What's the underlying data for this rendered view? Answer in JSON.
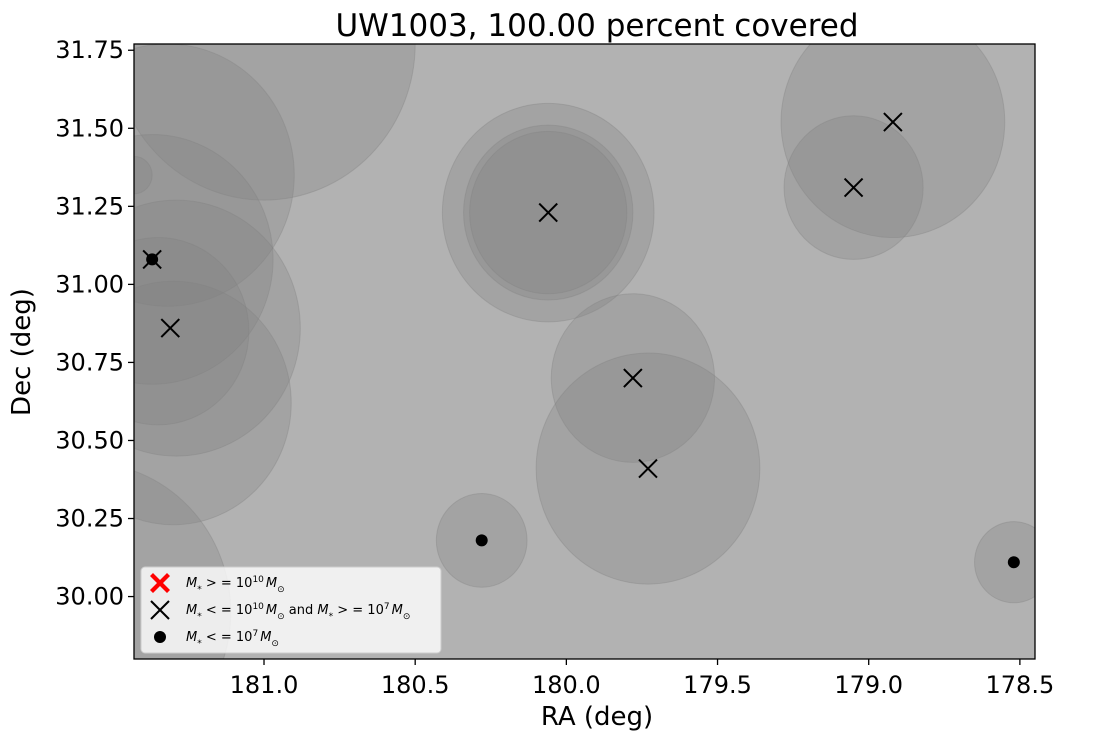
{
  "chart_data": {
    "type": "scatter",
    "title": "UW1003, 100.00 percent covered",
    "xlabel": "RA (deg)",
    "ylabel": "Dec (deg)",
    "xlim": [
      181.43,
      178.45
    ],
    "ylim": [
      29.8,
      31.77
    ],
    "x_inverted": true,
    "xticks": [
      181.0,
      180.5,
      180.0,
      179.5,
      179.0,
      178.5
    ],
    "xtick_labels": [
      "181.0",
      "180.5",
      "180.0",
      "179.5",
      "179.0",
      "178.5"
    ],
    "yticks": [
      30.0,
      30.25,
      30.5,
      30.75,
      31.0,
      31.25,
      31.5,
      31.75
    ],
    "ytick_labels": [
      "30.00",
      "30.25",
      "30.50",
      "30.75",
      "31.00",
      "31.25",
      "31.50",
      "31.75"
    ],
    "background_color": "#b2b2b2",
    "coverage_circle_color": "#808080",
    "coverage_circles": [
      {
        "ra": 181.0,
        "dec": 31.77,
        "radius": 0.5
      },
      {
        "ra": 181.32,
        "dec": 31.35,
        "radius": 0.42
      },
      {
        "ra": 181.37,
        "dec": 31.08,
        "radius": 0.4
      },
      {
        "ra": 181.3,
        "dec": 30.62,
        "radius": 0.39
      },
      {
        "ra": 181.29,
        "dec": 30.86,
        "radius": 0.41
      },
      {
        "ra": 181.35,
        "dec": 30.85,
        "radius": 0.3
      },
      {
        "ra": 181.59,
        "dec": 29.95,
        "radius": 0.48
      },
      {
        "ra": 181.43,
        "dec": 31.35,
        "radius": 0.06
      },
      {
        "ra": 180.06,
        "dec": 31.23,
        "radius": 0.35
      },
      {
        "ra": 180.06,
        "dec": 31.23,
        "radius": 0.28
      },
      {
        "ra": 180.06,
        "dec": 31.23,
        "radius": 0.26
      },
      {
        "ra": 179.78,
        "dec": 30.7,
        "radius": 0.27
      },
      {
        "ra": 179.73,
        "dec": 30.41,
        "radius": 0.37
      },
      {
        "ra": 180.28,
        "dec": 30.18,
        "radius": 0.15
      },
      {
        "ra": 178.92,
        "dec": 31.52,
        "radius": 0.37
      },
      {
        "ra": 179.05,
        "dec": 31.31,
        "radius": 0.23
      },
      {
        "ra": 178.52,
        "dec": 30.11,
        "radius": 0.13
      }
    ],
    "series": [
      {
        "name": "M_* >= 10^10 M_sun",
        "marker": "filled-x",
        "color": "#ff0000",
        "points": []
      },
      {
        "name": "10^7 M_sun <= M_* <= 10^10 M_sun",
        "marker": "x",
        "color": "#000000",
        "points": [
          {
            "ra": 181.37,
            "dec": 31.08
          },
          {
            "ra": 181.31,
            "dec": 30.86
          },
          {
            "ra": 180.06,
            "dec": 31.23
          },
          {
            "ra": 179.78,
            "dec": 30.7
          },
          {
            "ra": 179.73,
            "dec": 30.41
          },
          {
            "ra": 179.05,
            "dec": 31.31
          },
          {
            "ra": 178.92,
            "dec": 31.52
          }
        ]
      },
      {
        "name": "M_* <= 10^7 M_sun",
        "marker": "dot",
        "color": "#000000",
        "points": [
          {
            "ra": 181.37,
            "dec": 31.08
          },
          {
            "ra": 180.28,
            "dec": 30.18
          },
          {
            "ra": 178.52,
            "dec": 30.11
          }
        ]
      }
    ],
    "legend": {
      "placement": "lower-left",
      "entries": [
        {
          "prefix": "M",
          "sub": "*",
          "op": " > = 10",
          "exp": "10",
          "tail": "M",
          "tail_sub": "⊙"
        },
        {
          "prefix": "M",
          "sub": "*",
          "op": " < = 10",
          "exp": "10",
          "tail": "M",
          "tail_sub": "⊙",
          "and": " and ",
          "prefix2": "M",
          "sub2": "*",
          "op2": " > = 10",
          "exp2": "7",
          "tail2": "M",
          "tail2_sub": "⊙"
        },
        {
          "prefix": "M",
          "sub": "*",
          "op": " < = 10",
          "exp": "7",
          "tail": "M",
          "tail_sub": "⊙"
        }
      ]
    },
    "grid": false
  }
}
